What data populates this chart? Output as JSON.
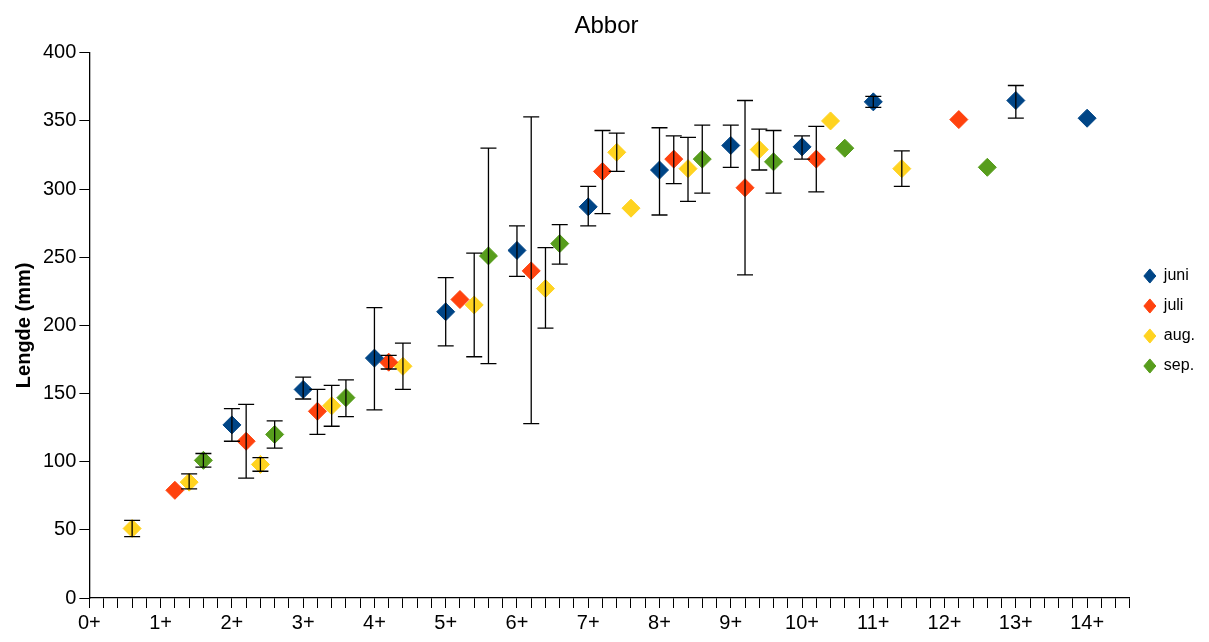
{
  "chart_data": {
    "type": "scatter",
    "title": "Abbor",
    "ylabel": "Lengde (mm)",
    "marker": "diamond",
    "grid": false,
    "legend": "right",
    "categories": [
      "0+",
      null,
      null,
      null,
      null,
      "1+",
      null,
      null,
      null,
      null,
      "2+",
      null,
      null,
      null,
      null,
      "3+",
      null,
      null,
      null,
      null,
      "4+",
      null,
      null,
      null,
      null,
      "5+",
      null,
      null,
      null,
      null,
      "6+",
      null,
      null,
      null,
      null,
      "7+",
      null,
      null,
      null,
      null,
      "8+",
      null,
      null,
      null,
      null,
      "9+",
      null,
      null,
      null,
      null,
      "10+",
      null,
      null,
      null,
      null,
      "11+",
      null,
      null,
      null,
      null,
      "12+",
      null,
      null,
      null,
      null,
      "13+",
      null,
      null,
      null,
      null,
      "14+",
      null,
      null,
      null
    ],
    "ylim": [
      0,
      400
    ],
    "yticks": [
      0,
      50,
      100,
      150,
      200,
      250,
      300,
      350,
      400
    ],
    "series": [
      {
        "name": "juni",
        "color": "#004586",
        "values": [
          null,
          null,
          null,
          null,
          null,
          null,
          null,
          null,
          null,
          null,
          127,
          null,
          null,
          null,
          null,
          153,
          null,
          null,
          null,
          null,
          176,
          null,
          null,
          null,
          null,
          210,
          null,
          null,
          null,
          null,
          255,
          null,
          null,
          null,
          null,
          287,
          null,
          null,
          null,
          null,
          314,
          null,
          null,
          null,
          null,
          332,
          null,
          null,
          null,
          null,
          331,
          null,
          null,
          null,
          null,
          364,
          null,
          null,
          null,
          null,
          null,
          null,
          null,
          null,
          null,
          365,
          null,
          null,
          null,
          null,
          352,
          null,
          null,
          null
        ],
        "errors": [
          null,
          null,
          null,
          null,
          null,
          null,
          null,
          null,
          null,
          null,
          [
            115,
            139
          ],
          null,
          null,
          null,
          null,
          [
            146,
            162
          ],
          null,
          null,
          null,
          null,
          [
            138,
            213
          ],
          null,
          null,
          null,
          null,
          [
            185,
            235
          ],
          null,
          null,
          null,
          null,
          [
            236,
            273
          ],
          null,
          null,
          null,
          null,
          [
            273,
            302
          ],
          null,
          null,
          null,
          null,
          [
            281,
            345
          ],
          null,
          null,
          null,
          null,
          [
            316,
            347
          ],
          null,
          null,
          null,
          null,
          [
            322,
            339
          ],
          null,
          null,
          null,
          null,
          [
            360,
            368
          ],
          null,
          null,
          null,
          null,
          null,
          null,
          null,
          null,
          null,
          [
            352,
            376
          ],
          null,
          null,
          null,
          null,
          null,
          null,
          null,
          null
        ]
      },
      {
        "name": "juli",
        "color": "#ff420e",
        "values": [
          null,
          null,
          null,
          null,
          null,
          null,
          79,
          null,
          null,
          null,
          null,
          115,
          null,
          null,
          null,
          null,
          137,
          null,
          null,
          null,
          null,
          173,
          null,
          null,
          null,
          null,
          219,
          null,
          null,
          null,
          null,
          240,
          null,
          null,
          null,
          null,
          313,
          null,
          null,
          null,
          null,
          322,
          null,
          null,
          null,
          null,
          301,
          null,
          null,
          null,
          null,
          322,
          null,
          null,
          null,
          null,
          null,
          null,
          null,
          null,
          null,
          351,
          null,
          null,
          null,
          null,
          null,
          null,
          null,
          null,
          null,
          null,
          null,
          null
        ],
        "errors": [
          null,
          null,
          null,
          null,
          null,
          null,
          null,
          null,
          null,
          null,
          null,
          [
            88,
            142
          ],
          null,
          null,
          null,
          null,
          [
            120,
            153
          ],
          null,
          null,
          null,
          null,
          [
            168,
            178
          ],
          null,
          null,
          null,
          null,
          null,
          null,
          null,
          null,
          null,
          [
            128,
            353
          ],
          null,
          null,
          null,
          null,
          [
            282,
            343
          ],
          null,
          null,
          null,
          null,
          [
            304,
            339
          ],
          null,
          null,
          null,
          null,
          [
            237,
            365
          ],
          null,
          null,
          null,
          null,
          [
            298,
            346
          ],
          null,
          null,
          null,
          null,
          null,
          null,
          null,
          null,
          null,
          null,
          null,
          null,
          null,
          null,
          null,
          null,
          null,
          null,
          null,
          null,
          null,
          null
        ]
      },
      {
        "name": "aug.",
        "color": "#ffd320",
        "values": [
          null,
          null,
          null,
          51,
          null,
          null,
          null,
          85,
          null,
          null,
          null,
          null,
          98,
          null,
          null,
          null,
          null,
          141,
          null,
          null,
          null,
          null,
          170,
          null,
          null,
          null,
          null,
          215,
          null,
          null,
          null,
          null,
          227,
          null,
          null,
          null,
          null,
          327,
          286,
          null,
          null,
          null,
          315,
          null,
          null,
          null,
          null,
          329,
          null,
          null,
          null,
          null,
          350,
          null,
          null,
          null,
          null,
          315,
          null,
          null,
          null,
          null,
          null,
          null,
          null,
          null,
          null,
          null,
          null,
          null,
          null,
          null,
          null,
          null
        ],
        "errors": [
          null,
          null,
          null,
          [
            45,
            57
          ],
          null,
          null,
          null,
          [
            80,
            91
          ],
          null,
          null,
          null,
          null,
          [
            93,
            103
          ],
          null,
          null,
          null,
          null,
          [
            126,
            156
          ],
          null,
          null,
          null,
          null,
          [
            153,
            187
          ],
          null,
          null,
          null,
          null,
          [
            177,
            253
          ],
          null,
          null,
          null,
          null,
          [
            198,
            257
          ],
          null,
          null,
          null,
          null,
          [
            313,
            341
          ],
          null,
          null,
          null,
          null,
          [
            291,
            338
          ],
          null,
          null,
          null,
          null,
          [
            314,
            344
          ],
          null,
          null,
          null,
          null,
          null,
          null,
          null,
          null,
          null,
          [
            302,
            328
          ],
          null,
          null,
          null,
          null,
          null,
          null,
          null,
          null,
          null,
          null,
          null,
          null,
          null,
          null,
          null,
          null
        ]
      },
      {
        "name": "sep.",
        "color": "#579d1c",
        "values": [
          null,
          null,
          null,
          null,
          null,
          null,
          null,
          null,
          101,
          null,
          null,
          null,
          null,
          120,
          null,
          null,
          null,
          null,
          147,
          null,
          null,
          null,
          null,
          null,
          null,
          null,
          null,
          null,
          251,
          null,
          null,
          null,
          null,
          260,
          null,
          null,
          null,
          null,
          null,
          null,
          null,
          null,
          null,
          322,
          null,
          null,
          null,
          null,
          320,
          null,
          null,
          null,
          null,
          330,
          null,
          null,
          null,
          null,
          null,
          null,
          null,
          null,
          null,
          316,
          null,
          null,
          null,
          null,
          null,
          null,
          null,
          null,
          null,
          null
        ],
        "errors": [
          null,
          null,
          null,
          null,
          null,
          null,
          null,
          null,
          [
            96,
            106
          ],
          null,
          null,
          null,
          null,
          [
            110,
            130
          ],
          null,
          null,
          null,
          null,
          [
            133,
            160
          ],
          null,
          null,
          null,
          null,
          null,
          null,
          null,
          null,
          null,
          [
            172,
            330
          ],
          null,
          null,
          null,
          null,
          [
            245,
            274
          ],
          null,
          null,
          null,
          null,
          null,
          null,
          null,
          null,
          null,
          [
            297,
            347
          ],
          null,
          null,
          null,
          null,
          [
            297,
            343
          ],
          null,
          null,
          null,
          null,
          null,
          null,
          null,
          null,
          null,
          null,
          null,
          null,
          null,
          null,
          null,
          null,
          null,
          null,
          null,
          null,
          null,
          null,
          null,
          null,
          null
        ]
      }
    ]
  }
}
